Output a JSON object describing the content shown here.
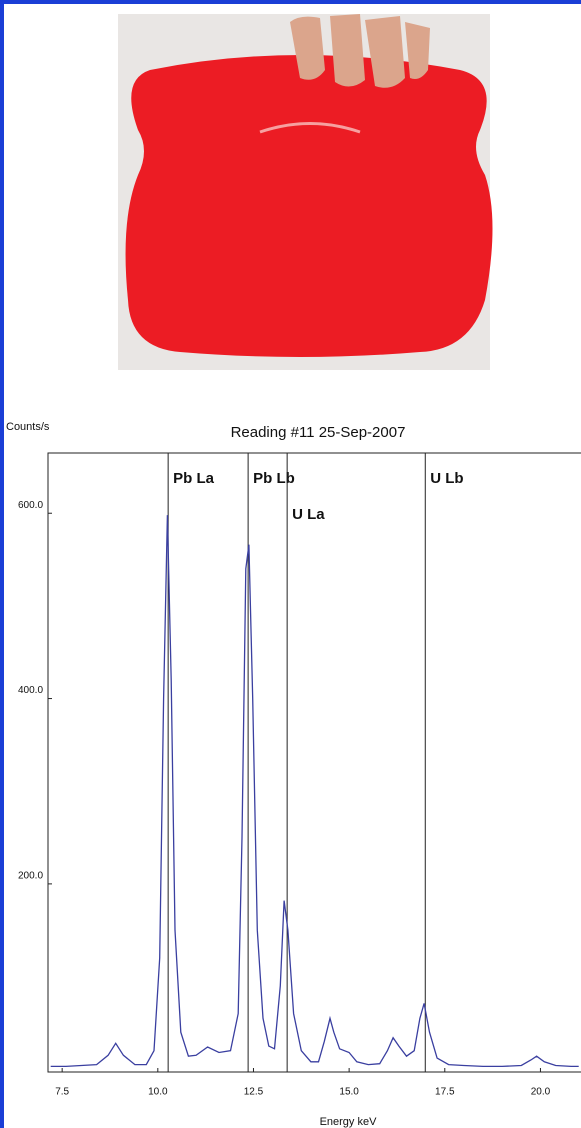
{
  "chart_data": {
    "type": "line",
    "title": "Reading #11 25-Sep-2007",
    "y_label": "Counts/s",
    "x_label": "Energy keV",
    "x": [
      7.2,
      7.6,
      8.0,
      8.4,
      8.7,
      8.9,
      9.1,
      9.4,
      9.7,
      9.9,
      10.05,
      10.15,
      10.25,
      10.35,
      10.45,
      10.6,
      10.8,
      11.0,
      11.3,
      11.6,
      11.9,
      12.1,
      12.2,
      12.3,
      12.38,
      12.48,
      12.6,
      12.75,
      12.9,
      13.05,
      13.2,
      13.3,
      13.4,
      13.55,
      13.75,
      14.0,
      14.2,
      14.35,
      14.5,
      14.6,
      14.75,
      15.0,
      15.2,
      15.5,
      15.8,
      16.0,
      16.15,
      16.3,
      16.5,
      16.7,
      16.85,
      16.96,
      17.1,
      17.3,
      17.6,
      18.0,
      18.5,
      19.0,
      19.5,
      19.75,
      19.9,
      20.1,
      20.4,
      20.8,
      21.0
    ],
    "series": [
      {
        "color": "#3a3fa0",
        "values": [
          3,
          3,
          4,
          5,
          15,
          28,
          15,
          5,
          5,
          20,
          120,
          400,
          598,
          420,
          150,
          40,
          14,
          15,
          24,
          18,
          20,
          60,
          250,
          540,
          566,
          400,
          150,
          55,
          25,
          22,
          90,
          182,
          150,
          60,
          20,
          8,
          8,
          30,
          55,
          40,
          22,
          18,
          8,
          5,
          6,
          20,
          34,
          25,
          14,
          20,
          55,
          71,
          40,
          12,
          5,
          4,
          3,
          3,
          4,
          10,
          14,
          8,
          4,
          3,
          3
        ]
      }
    ],
    "annotations": [
      {
        "label": "Pb La",
        "x": 10.27
      },
      {
        "label": "Pb Lb",
        "x": 12.36
      },
      {
        "label": "U La",
        "x": 13.38
      },
      {
        "label": "U Lb",
        "x": 16.99
      }
    ],
    "xlim": [
      7.13,
      21.06
    ],
    "ylim": [
      -3,
      665
    ],
    "xticks": [
      7.5,
      {
        "value": 10,
        "label": "10.0"
      },
      12.5,
      {
        "value": 15,
        "label": "15.0"
      },
      17.5,
      {
        "value": 20,
        "label": "20.0"
      }
    ],
    "yticks": [
      {
        "value": 200,
        "label": "200.0"
      },
      {
        "value": 400,
        "label": "400.0"
      },
      {
        "value": 600,
        "label": "600.0"
      }
    ]
  }
}
